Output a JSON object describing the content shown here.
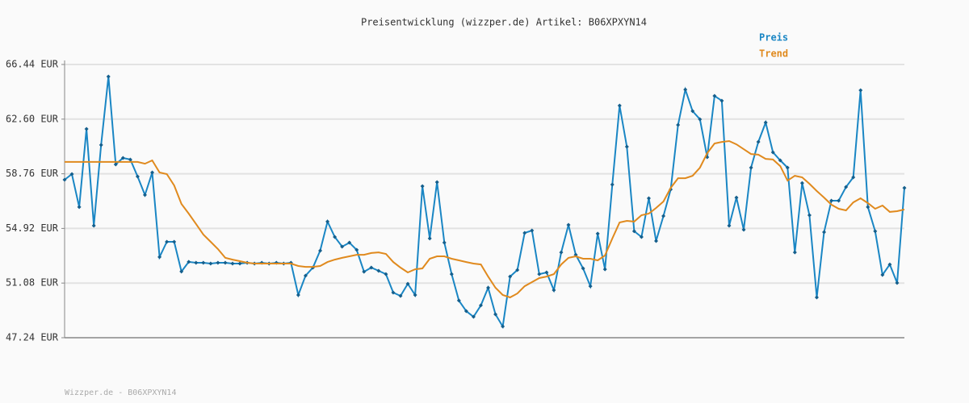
{
  "chart_data": {
    "type": "line",
    "title": "Preisentwicklung (wizzper.de) Artikel: B06XPXYN14",
    "footer": "Wizzper.de - B06XPXYN14",
    "ylim": [
      47.24,
      66.44
    ],
    "yticks": [
      {
        "value": 47.24,
        "label": "47.24 EUR"
      },
      {
        "value": 51.08,
        "label": "51.08 EUR"
      },
      {
        "value": 54.92,
        "label": "54.92 EUR"
      },
      {
        "value": 58.76,
        "label": "58.76 EUR"
      },
      {
        "value": 62.6,
        "label": "62.60 EUR"
      },
      {
        "value": 66.44,
        "label": "66.44 EUR"
      }
    ],
    "grid": true,
    "legend": "top-right",
    "series": [
      {
        "name": "Preis",
        "color": "#1a86c4",
        "markers": true,
        "values": [
          58.34,
          58.74,
          56.42,
          61.91,
          55.11,
          60.78,
          65.59,
          59.42,
          59.87,
          59.76,
          58.57,
          57.27,
          58.85,
          52.91,
          53.98,
          53.98,
          51.89,
          52.57,
          52.51,
          52.51,
          52.45,
          52.51,
          52.51,
          52.45,
          52.45,
          52.51,
          52.45,
          52.51,
          52.45,
          52.51,
          52.45,
          52.51,
          50.24,
          51.6,
          52.17,
          53.36,
          55.4,
          54.32,
          53.64,
          53.92,
          53.41,
          51.88,
          52.17,
          51.94,
          51.71,
          50.41,
          50.18,
          51.03,
          50.24,
          57.89,
          54.21,
          58.17,
          53.92,
          51.71,
          49.85,
          49.11,
          48.71,
          49.51,
          50.75,
          48.88,
          48.03,
          51.54,
          52.0,
          54.6,
          54.77,
          51.71,
          51.83,
          50.58,
          53.24,
          55.17,
          53.07,
          52.11,
          50.86,
          54.55,
          52.05,
          58.0,
          63.55,
          60.66,
          54.72,
          54.32,
          57.04,
          54.04,
          55.79,
          57.66,
          62.19,
          64.68,
          63.16,
          62.59,
          59.93,
          64.23,
          63.89,
          55.11,
          57.09,
          54.83,
          59.19,
          61.0,
          62.36,
          60.27,
          59.7,
          59.19,
          53.24,
          58.11,
          55.85,
          50.07,
          54.66,
          56.87,
          56.87,
          57.83,
          58.51,
          64.63,
          56.42,
          54.72,
          51.66,
          52.39,
          51.09,
          57.77
        ]
      },
      {
        "name": "Trend",
        "color": "#e08a1e",
        "markers": false,
        "values": [
          59.59,
          59.59,
          59.59,
          59.59,
          59.59,
          59.59,
          59.59,
          59.59,
          59.59,
          59.59,
          59.59,
          59.47,
          59.7,
          58.85,
          58.74,
          57.94,
          56.64,
          55.96,
          55.23,
          54.49,
          53.98,
          53.47,
          52.85,
          52.73,
          52.62,
          52.51,
          52.45,
          52.45,
          52.45,
          52.45,
          52.45,
          52.45,
          52.28,
          52.22,
          52.22,
          52.28,
          52.56,
          52.73,
          52.85,
          52.96,
          53.07,
          53.07,
          53.19,
          53.24,
          53.13,
          52.56,
          52.17,
          51.83,
          52.05,
          52.11,
          52.79,
          52.96,
          52.96,
          52.79,
          52.68,
          52.56,
          52.45,
          52.39,
          51.54,
          50.75,
          50.24,
          50.07,
          50.35,
          50.86,
          51.15,
          51.43,
          51.54,
          51.71,
          52.39,
          52.85,
          52.96,
          52.79,
          52.79,
          52.68,
          53.02,
          54.21,
          55.34,
          55.45,
          55.4,
          55.85,
          55.96,
          56.36,
          56.81,
          57.77,
          58.45,
          58.45,
          58.62,
          59.19,
          60.21,
          60.89,
          61.0,
          61.06,
          60.83,
          60.49,
          60.15,
          60.1,
          59.81,
          59.76,
          59.3,
          58.28,
          58.62,
          58.51,
          58.06,
          57.55,
          57.09,
          56.59,
          56.3,
          56.19,
          56.75,
          57.04,
          56.7,
          56.3,
          56.53,
          56.08,
          56.13,
          56.25
        ]
      }
    ]
  }
}
